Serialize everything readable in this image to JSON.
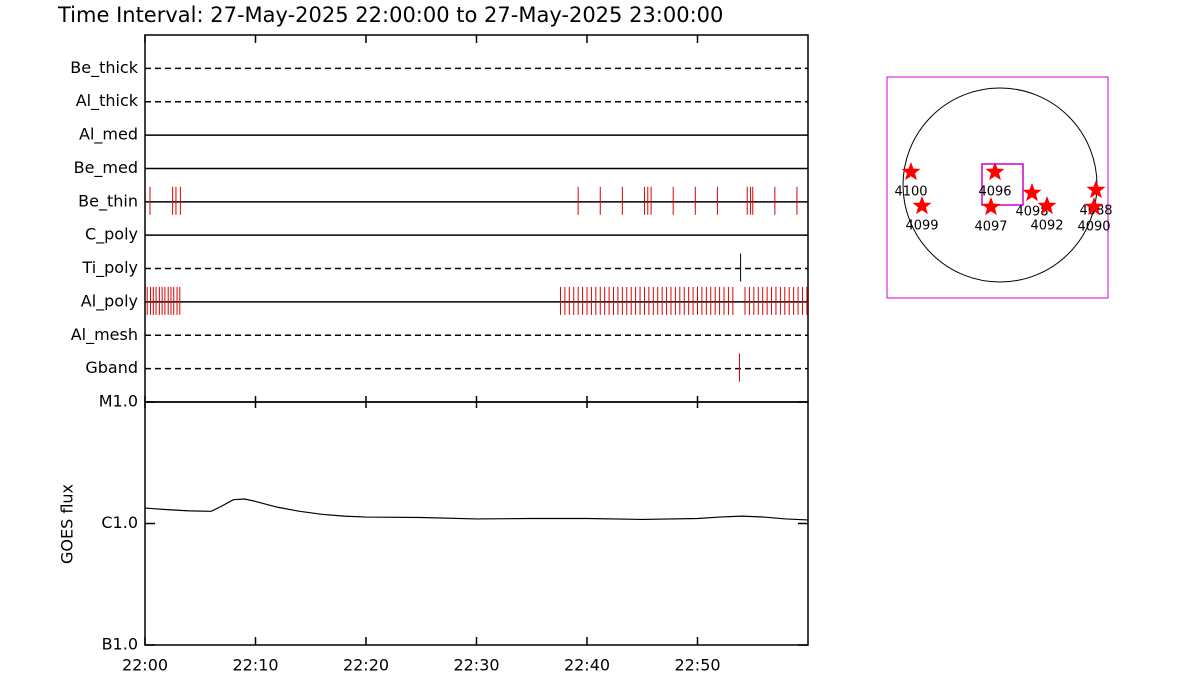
{
  "title": "Time Interval: 27-May-2025 22:00:00 to 27-May-2025 23:00:00",
  "chart_data": [
    {
      "type": "event",
      "xlim": [
        0,
        60
      ],
      "filters": [
        {
          "name": "Be_thick",
          "style": "dashed",
          "color": "#e00000",
          "events": []
        },
        {
          "name": "Al_thick",
          "style": "dashed",
          "color": "#e00000",
          "events": []
        },
        {
          "name": "Al_med",
          "style": "solid",
          "color": "#e00000",
          "events": []
        },
        {
          "name": "Be_med",
          "style": "solid",
          "color": "#e00000",
          "events": []
        },
        {
          "name": "Be_thin",
          "style": "solid",
          "color": "#e00000",
          "events": [
            0.45,
            2.5,
            2.8,
            3.2,
            39.2,
            41.2,
            43.2,
            45.2,
            45.5,
            45.8,
            47.8,
            49.8,
            51.8,
            54.5,
            54.8,
            55.0,
            57.0,
            59.0
          ]
        },
        {
          "name": "C_poly",
          "style": "solid",
          "color": "#e00000",
          "events": []
        },
        {
          "name": "Ti_poly",
          "style": "dashed",
          "color": "#000000",
          "events": [
            53.9
          ]
        },
        {
          "name": "Al_poly",
          "style": "solid",
          "color": "#e00000",
          "events": [
            0.2,
            0.5,
            0.75,
            1.0,
            1.3,
            1.55,
            1.8,
            2.1,
            2.35,
            2.6,
            2.9,
            3.15,
            37.6,
            38.0,
            38.4,
            38.8,
            39.2,
            39.6,
            40.0,
            40.4,
            40.8,
            41.2,
            41.6,
            42.0,
            42.4,
            42.8,
            43.2,
            43.6,
            44.0,
            44.4,
            44.8,
            45.2,
            45.6,
            46.0,
            46.4,
            46.8,
            47.2,
            47.6,
            48.0,
            48.4,
            48.8,
            49.2,
            49.6,
            50.0,
            50.4,
            50.8,
            51.2,
            51.6,
            52.0,
            52.4,
            52.8,
            53.2,
            54.3,
            54.7,
            55.1,
            55.5,
            55.9,
            56.3,
            56.7,
            57.1,
            57.5,
            57.9,
            58.3,
            58.7,
            59.1,
            59.5,
            59.9
          ]
        },
        {
          "name": "Al_mesh",
          "style": "dashed",
          "color": "#e00000",
          "events": []
        },
        {
          "name": "Gband",
          "style": "dashed",
          "color": "#e00000",
          "events": [
            53.8
          ]
        }
      ]
    },
    {
      "type": "line",
      "y_label": "GOES flux",
      "log_scale": true,
      "color": "#000000",
      "x": [
        0,
        2,
        4,
        6,
        7,
        8,
        9,
        10,
        12,
        14,
        16,
        18,
        20,
        25,
        30,
        35,
        40,
        45,
        50,
        52,
        54,
        56,
        58,
        60
      ],
      "values": [
        1.34e-06,
        1.3e-06,
        1.27e-06,
        1.26e-06,
        1.4e-06,
        1.57e-06,
        1.59e-06,
        1.52e-06,
        1.36e-06,
        1.26e-06,
        1.19e-06,
        1.15e-06,
        1.13e-06,
        1.12e-06,
        1.09e-06,
        1.1e-06,
        1.1e-06,
        1.08e-06,
        1.1e-06,
        1.13e-06,
        1.15e-06,
        1.13e-06,
        1.09e-06,
        1.07e-06
      ],
      "xlim": [
        0,
        60
      ],
      "xticks": [
        {
          "value": 0,
          "label": "22:00"
        },
        {
          "value": 10,
          "label": "22:10"
        },
        {
          "value": 20,
          "label": "22:20"
        },
        {
          "value": 30,
          "label": "22:30"
        },
        {
          "value": 40,
          "label": "22:40"
        },
        {
          "value": 50,
          "label": "22:50"
        }
      ],
      "ylim": [
        1e-07,
        1e-05
      ],
      "yticks": [
        {
          "value": 1e-05,
          "label": "M1.0"
        },
        {
          "value": 1e-06,
          "label": "C1.0"
        },
        {
          "value": 1e-07,
          "label": "B1.0"
        }
      ]
    }
  ],
  "sun_map": {
    "regions": [
      "4100",
      "4099",
      "4096",
      "4097",
      "4098",
      "4092",
      "4088",
      "4090"
    ]
  }
}
